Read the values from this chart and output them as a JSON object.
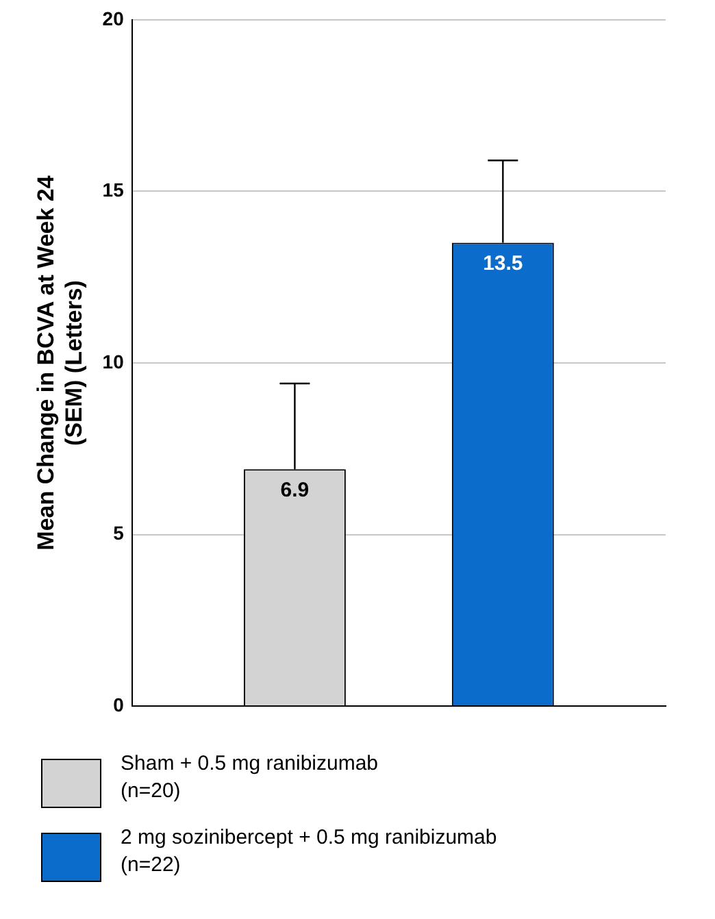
{
  "chart_data": {
    "type": "bar",
    "ylabel": "Mean Change in BCVA at Week 24\n(SEM) (Letters)",
    "categories": [
      null
    ],
    "series": [
      {
        "name": "Sham + 0.5 mg ranibizumab\n(n=20)",
        "color": "#d3d3d3",
        "values": [
          6.9
        ],
        "errors": [
          [
            6.9,
            9.4
          ]
        ]
      },
      {
        "name": "2 mg sozinibercept + 0.5 mg ranibizumab\n(n=22)",
        "color": "#0b6ccc",
        "values": [
          13.5
        ],
        "errors": [
          [
            13.5,
            15.9
          ]
        ]
      }
    ],
    "ylim": [
      0,
      20
    ],
    "yticks": [
      0,
      5,
      10,
      15,
      20
    ],
    "grid": "y",
    "legend": "bottom",
    "data_labels": true
  }
}
